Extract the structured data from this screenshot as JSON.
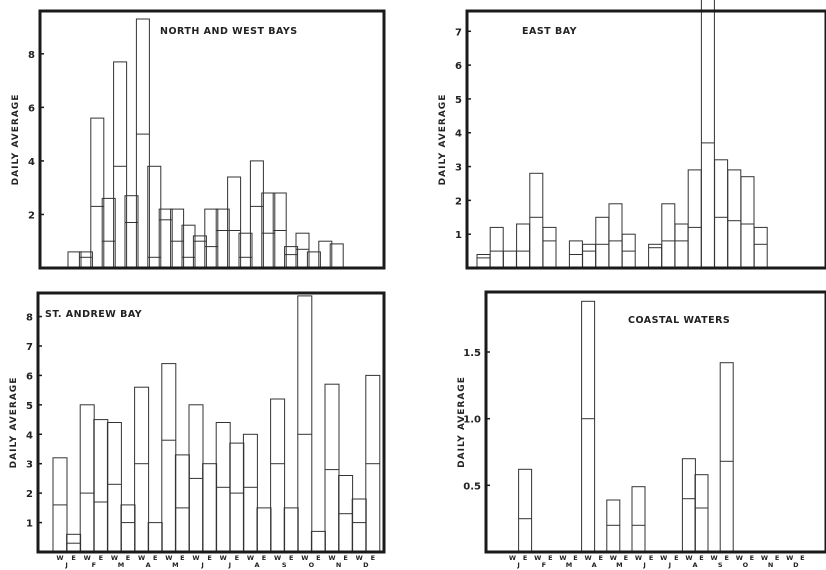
{
  "chart_data": [
    {
      "type": "bar",
      "title": "NORTH AND WEST BAYS",
      "ylabel": "DAILY AVERAGE",
      "xlabel": "",
      "ylim": [
        0,
        9.6
      ],
      "yticks": [
        2,
        4,
        6,
        8
      ],
      "categories": [
        "J-W",
        "J-E",
        "F-W",
        "F-E",
        "M-W",
        "M-E",
        "A-W",
        "A-E",
        "M-W",
        "M-E",
        "J-W",
        "J-E",
        "J-W",
        "J-E",
        "A-W",
        "A-E",
        "S-W",
        "S-E",
        "O-W",
        "O-E",
        "N-W",
        "N-E",
        "D-W",
        "D-E"
      ],
      "series": [
        {
          "values": [
            0.6,
            0.2,
            3.3,
            1.6,
            3.9,
            1.0,
            4.3,
            3.4,
            0.4,
            1.2,
            1.2,
            0.2,
            1.4,
            0.8,
            2.0,
            0.9,
            1.7,
            1.5,
            1.4,
            0.3,
            0.6,
            0.6,
            0.0,
            0.9
          ]
        },
        {
          "values": [
            0.0,
            0.4,
            2.3,
            1.0,
            3.8,
            1.7,
            5.0,
            0.4,
            1.8,
            1.0,
            0.4,
            1.0,
            0.8,
            1.4,
            1.4,
            0.4,
            2.3,
            1.3,
            1.4,
            0.5,
            0.7,
            0.0,
            1.0,
            0.0
          ]
        }
      ],
      "series_note_hidden": ""
    },
    {
      "type": "bar",
      "title": "EAST BAY",
      "ylabel": "DAILY AVERAGE",
      "xlabel": "",
      "ylim": [
        0,
        7.6
      ],
      "yticks": [
        1,
        2,
        3,
        4,
        5,
        6,
        7
      ],
      "categories": [
        "J-W",
        "J-E",
        "F-W",
        "F-E",
        "M-W",
        "M-E",
        "A-W",
        "A-E",
        "M-W",
        "M-E",
        "J-W",
        "J-E",
        "J-W",
        "J-E",
        "A-W",
        "A-E",
        "S-W",
        "S-E",
        "O-W",
        "O-E",
        "N-W",
        "N-E",
        "D-W",
        "D-E"
      ],
      "series": [
        {
          "values": [
            0.1,
            0.7,
            0.0,
            0.8,
            1.3,
            0.4,
            0.0,
            0.4,
            0.2,
            0.8,
            1.1,
            0.5,
            0.0,
            0.1,
            1.1,
            0.5,
            1.7,
            4.4,
            1.7,
            1.5,
            1.4,
            0.5,
            0.0,
            0.0
          ]
        },
        {
          "values": [
            0.3,
            0.5,
            0.5,
            0.5,
            1.5,
            0.8,
            0.0,
            0.4,
            0.5,
            0.7,
            0.8,
            0.5,
            0.0,
            0.6,
            0.8,
            0.8,
            1.2,
            3.7,
            1.5,
            1.4,
            1.3,
            0.7,
            0.0,
            0.0
          ]
        }
      ]
    },
    {
      "type": "bar",
      "title": "ST. ANDREW BAY",
      "ylabel": "DAILY AVERAGE",
      "xlabel": "",
      "ylim": [
        0,
        8.8
      ],
      "yticks": [
        1,
        2,
        3,
        4,
        5,
        6,
        7,
        8
      ],
      "categories": [
        "J-W",
        "J-E",
        "F-W",
        "F-E",
        "M-W",
        "M-E",
        "A-W",
        "A-E",
        "M-W",
        "M-E",
        "J-W",
        "J-E",
        "J-W",
        "J-E",
        "A-W",
        "A-E",
        "S-W",
        "S-E",
        "O-W",
        "O-E",
        "N-W",
        "N-E",
        "D-W",
        "D-E"
      ],
      "series": [
        {
          "values": [
            1.6,
            0.3,
            3.0,
            2.8,
            2.1,
            0.6,
            2.6,
            0.0,
            2.6,
            1.8,
            2.5,
            0.0,
            2.2,
            1.7,
            1.8,
            0.0,
            2.2,
            0.0,
            4.7,
            0.0,
            2.9,
            1.3,
            0.8,
            3.0
          ]
        },
        {
          "values": [
            1.6,
            0.3,
            2.0,
            1.7,
            2.3,
            1.0,
            3.0,
            1.0,
            3.8,
            1.5,
            2.5,
            3.0,
            2.2,
            2.0,
            2.2,
            1.5,
            3.0,
            1.5,
            4.0,
            0.7,
            2.8,
            1.3,
            1.0,
            3.0
          ]
        }
      ]
    },
    {
      "type": "bar",
      "title": "COASTAL WATERS",
      "ylabel": "DAILY AVERAGE",
      "xlabel": "",
      "ylim": [
        0,
        1.95
      ],
      "yticks": [
        0.5,
        1.0,
        1.5
      ],
      "ytick_labels": [
        "0.5",
        "1.0",
        "1.5"
      ],
      "categories": [
        "J-W",
        "J-E",
        "F-W",
        "F-E",
        "M-W",
        "M-E",
        "A-W",
        "A-E",
        "M-W",
        "M-E",
        "J-W",
        "J-E",
        "J-W",
        "J-E",
        "A-W",
        "A-E",
        "S-W",
        "S-E",
        "O-W",
        "O-E",
        "N-W",
        "N-E",
        "D-W",
        "D-E"
      ],
      "series": [
        {
          "values": [
            0.0,
            0.37,
            0.0,
            0.0,
            0.0,
            0.0,
            0.88,
            0.0,
            0.19,
            0.0,
            0.29,
            0.0,
            0.0,
            0.0,
            0.3,
            0.25,
            0.0,
            0.74,
            0.0,
            0.0,
            0.0,
            0.0,
            0.0,
            0.0
          ]
        },
        {
          "values": [
            0.0,
            0.25,
            0.0,
            0.0,
            0.0,
            0.0,
            1.0,
            0.0,
            0.2,
            0.0,
            0.2,
            0.0,
            0.0,
            0.0,
            0.4,
            0.33,
            0.0,
            0.68,
            0.0,
            0.0,
            0.0,
            0.0,
            0.0,
            0.0
          ]
        }
      ]
    }
  ],
  "axis": {
    "wind_labels": [
      "W",
      "E",
      "W",
      "E",
      "W",
      "E",
      "W",
      "E",
      "W",
      "E",
      "W",
      "E",
      "W",
      "E",
      "W",
      "E",
      "W",
      "E",
      "W",
      "E",
      "W",
      "E",
      "W",
      "E"
    ],
    "month_labels": [
      "J",
      "F",
      "M",
      "A",
      "M",
      "J",
      "J",
      "A",
      "S",
      "O",
      "N",
      "D"
    ]
  }
}
